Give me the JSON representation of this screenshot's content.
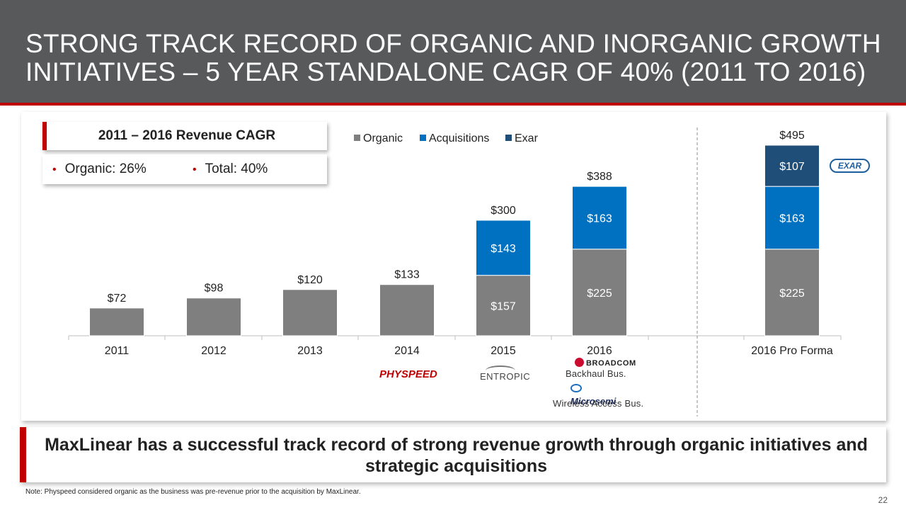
{
  "header": {
    "title": "STRONG TRACK RECORD OF ORGANIC AND INORGANIC GROWTH INITIATIVES – 5 YEAR STANDALONE CAGR OF 40% (2011 TO 2016)"
  },
  "cagr": {
    "title": "2011 – 2016 Revenue CAGR",
    "organic": "Organic:  26%",
    "total": "Total:  40%"
  },
  "logos": {
    "physpeed": "PHYSPEED",
    "entropic": "ENTROPIC",
    "broadcom": "BROADCOM",
    "broadcom_caption": "Backhaul Bus.",
    "microsemi": "Microsemi",
    "microsemi_caption": "Wireless Access Bus.",
    "exar": "EXAR"
  },
  "banner": {
    "text": "MaxLinear has a successful track record of strong revenue growth through organic initiatives and strategic acquisitions"
  },
  "note": "Note: Physpeed considered organic as the business was pre-revenue prior to the acquisition by MaxLinear.",
  "page_number": "22",
  "colors": {
    "organic": "#7f7f7f",
    "acquisitions": "#0070c0",
    "exar": "#1f4e79",
    "accent": "#c00000",
    "header": "#58595b"
  },
  "chart_data": {
    "type": "bar",
    "stacked": true,
    "categories": [
      "2011",
      "2012",
      "2013",
      "2014",
      "2015",
      "2016",
      "2016 Pro Forma"
    ],
    "series": [
      {
        "name": "Organic",
        "values": [
          72,
          98,
          120,
          133,
          157,
          225,
          225
        ],
        "labels": [
          null,
          null,
          null,
          null,
          "$157",
          "$225",
          "$225"
        ]
      },
      {
        "name": "Acquisitions",
        "values": [
          0,
          0,
          0,
          0,
          143,
          163,
          163
        ],
        "labels": [
          null,
          null,
          null,
          null,
          "$143",
          "$163",
          "$163"
        ]
      },
      {
        "name": "Exar",
        "values": [
          0,
          0,
          0,
          0,
          0,
          0,
          107
        ],
        "labels": [
          null,
          null,
          null,
          null,
          null,
          null,
          "$107"
        ]
      }
    ],
    "totals": [
      "$72",
      "$98",
      "$120",
      "$133",
      "$300",
      "$388",
      "$495"
    ],
    "ylim": [
      0,
      600
    ],
    "grid": false,
    "legend": "top"
  }
}
